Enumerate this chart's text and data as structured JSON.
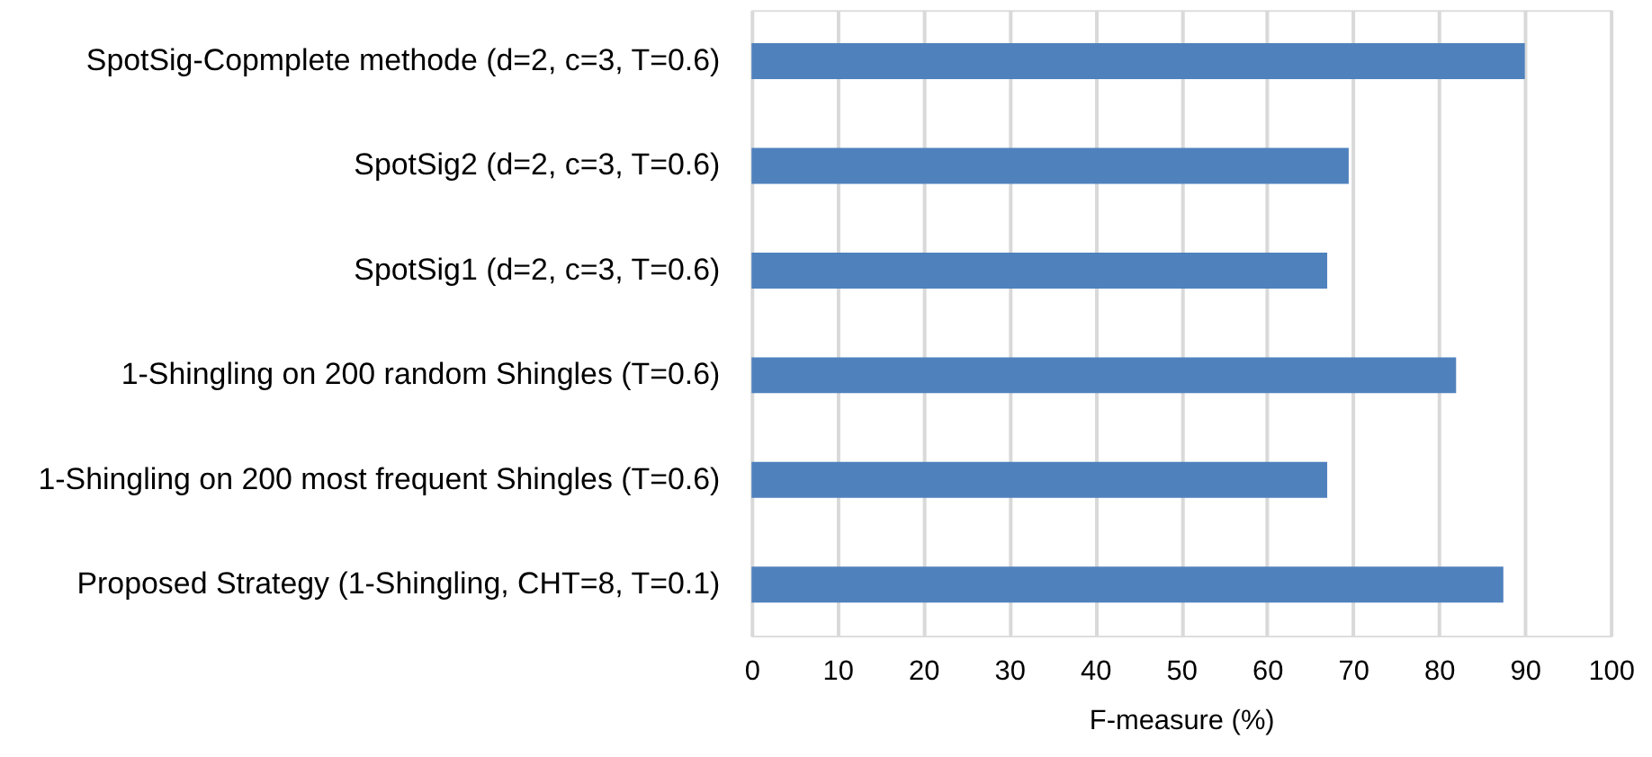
{
  "chart_data": {
    "type": "bar",
    "orientation": "horizontal",
    "categories": [
      "SpotSig-Copmplete methode (d=2, c=3, T=0.6)",
      "SpotSig2 (d=2, c=3, T=0.6)",
      "SpotSig1 (d=2, c=3, T=0.6)",
      "1-Shingling on 200 random Shingles (T=0.6)",
      "1-Shingling on 200 most frequent Shingles (T=0.6)",
      "Proposed Strategy (1-Shingling, CHT=8,  T=0.1)"
    ],
    "values": [
      90,
      69.5,
      67,
      82,
      67,
      87.5
    ],
    "colors": [
      "#4f81bd",
      "#4f81bd",
      "#4f81bd",
      "#4f81bd",
      "#4f81bd",
      "#4f81bd"
    ],
    "xlabel": "F-measure (%)",
    "xlim": [
      0,
      100
    ],
    "xticks": [
      0,
      10,
      20,
      30,
      40,
      50,
      60,
      70,
      80,
      90,
      100
    ],
    "grid": "x"
  }
}
